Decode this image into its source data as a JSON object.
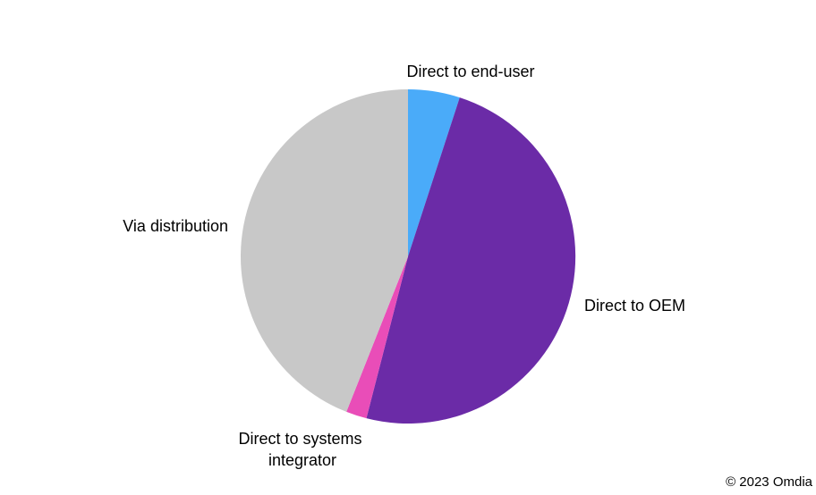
{
  "chart_data": {
    "type": "pie",
    "slices": [
      {
        "label": "Direct to end-user",
        "value": 5,
        "color": "#4aabf9"
      },
      {
        "label": "Direct to OEM",
        "value": 49,
        "color": "#6b2ba7"
      },
      {
        "label": "Direct to systems integrator",
        "value": 2,
        "color": "#e94db8"
      },
      {
        "label": "Via distribution",
        "value": 44,
        "color": "#c8c8c8"
      }
    ],
    "start_angle_deg": 0,
    "direction": "clockwise"
  },
  "footer": {
    "copyright": "© 2023 Omdia"
  }
}
